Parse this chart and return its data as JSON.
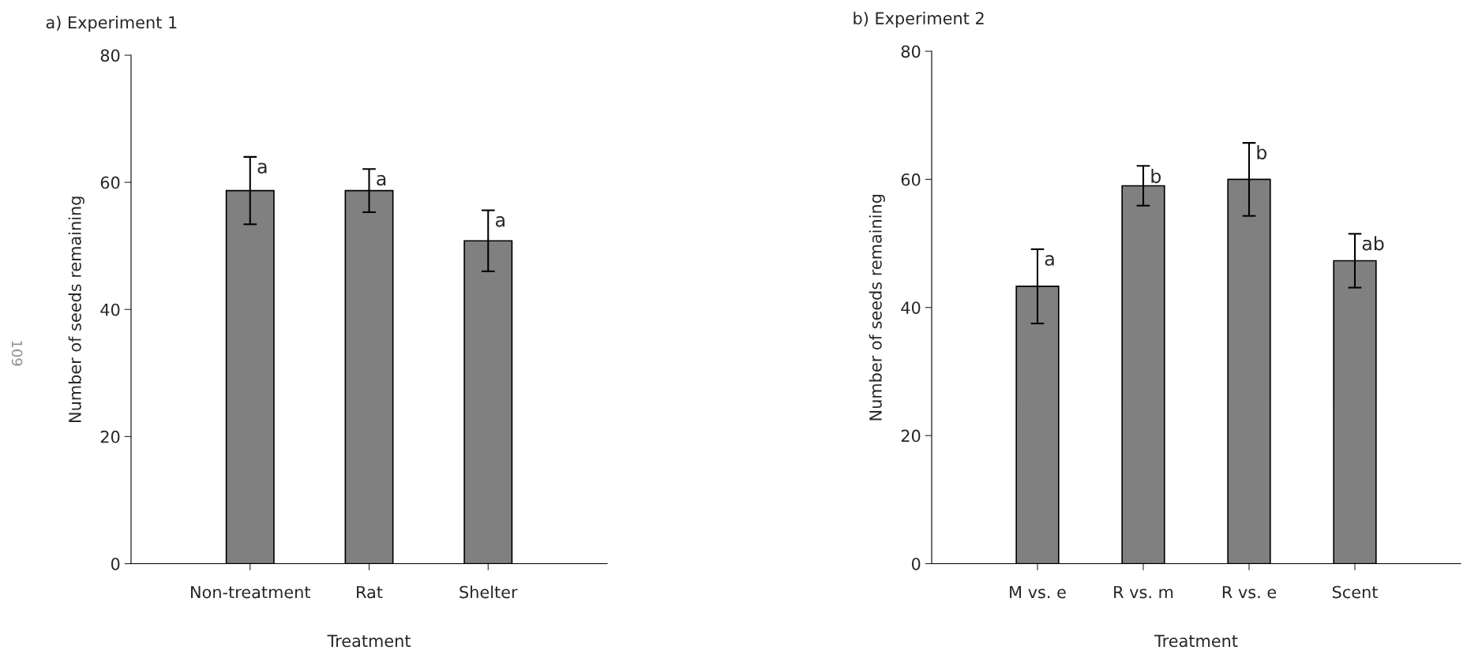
{
  "chart_data": [
    {
      "type": "bar",
      "title": "a) Experiment 1",
      "xlabel": "Treatment",
      "ylabel": "Number of seeds remaining",
      "categories": [
        "Non-treatment",
        "Rat",
        "Shelter"
      ],
      "values": [
        58.7,
        58.7,
        50.8
      ],
      "errors": [
        5.3,
        3.4,
        4.8
      ],
      "color": "#808080",
      "ylim": [
        0,
        80
      ],
      "yticks": [
        0,
        20,
        40,
        60,
        80
      ],
      "grid": false,
      "annotations": [
        {
          "text": "a",
          "x": "Non-treatment",
          "y": 64.0
        },
        {
          "text": "a",
          "x": "Rat",
          "y": 62.1
        },
        {
          "text": "a",
          "x": "Shelter",
          "y": 55.6
        },
        "109"
      ]
    },
    {
      "type": "bar",
      "title": "b) Experiment 2",
      "xlabel": "Treatment",
      "ylabel": "Number of seeds remaining",
      "categories": [
        "M vs. e",
        "R vs. m",
        "R vs. e",
        "Scent"
      ],
      "values": [
        43.3,
        59.0,
        60.0,
        47.3
      ],
      "errors": [
        5.8,
        3.1,
        5.7,
        4.2
      ],
      "color": "#808080",
      "ylim": [
        0,
        80
      ],
      "yticks": [
        0,
        20,
        40,
        60,
        80
      ],
      "grid": false,
      "annotations": [
        {
          "text": "a",
          "x": "M vs. e",
          "y": 49.1
        },
        {
          "text": "b",
          "x": "R vs. m",
          "y": 62.0
        },
        {
          "text": "b",
          "x": "R vs. e",
          "y": 65.7
        },
        {
          "text": "ab",
          "x": "Scent",
          "y": 51.5
        }
      ]
    }
  ]
}
